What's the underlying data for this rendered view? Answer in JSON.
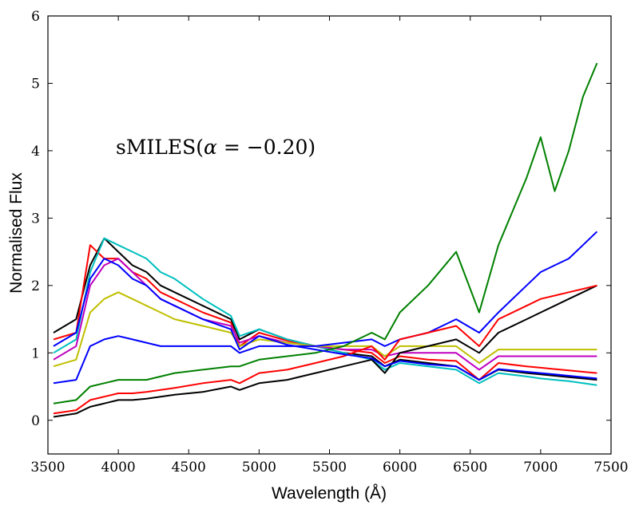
{
  "chart_data": {
    "type": "line",
    "xlabel": "Wavelength (Å)",
    "ylabel": "Normalised Flux",
    "xlim": [
      3500,
      7500
    ],
    "ylim": [
      -0.5,
      6
    ],
    "xticks": [
      "3500",
      "4000",
      "4500",
      "5000",
      "5500",
      "6000",
      "6500",
      "7000",
      "7500"
    ],
    "yticks": [
      "0",
      "1",
      "2",
      "3",
      "4",
      "5",
      "6"
    ],
    "annotation": {
      "prefix": "sMILES(",
      "symbol": "α",
      "rest": " = −0.20)"
    },
    "grid": false,
    "legend": "none",
    "colors": [
      "#000000",
      "#ff0000",
      "#0000ff",
      "#008000",
      "#00bfbf",
      "#bf00bf",
      "#bfbf00"
    ],
    "wavelength_samples": [
      3540,
      3700,
      3800,
      3900,
      4000,
      4100,
      4200,
      4300,
      4400,
      4600,
      4800,
      4861,
      5000,
      5200,
      5400,
      5600,
      5800,
      5893,
      6000,
      6200,
      6400,
      6563,
      6700,
      6900,
      7000,
      7100,
      7200,
      7300,
      7400
    ],
    "series": [
      {
        "color": "#000000",
        "values": [
          1.3,
          1.5,
          2.3,
          2.7,
          2.5,
          2.3,
          2.2,
          2.0,
          1.9,
          1.7,
          1.5,
          1.2,
          1.35,
          1.2,
          1.1,
          1.0,
          0.95,
          0.8,
          0.9,
          0.85,
          0.8,
          0.6,
          0.75,
          0.7,
          0.68,
          0.66,
          0.64,
          0.62,
          0.6
        ]
      },
      {
        "color": "#ff0000",
        "values": [
          1.2,
          1.3,
          2.6,
          2.4,
          2.4,
          2.2,
          2.1,
          1.9,
          1.8,
          1.6,
          1.45,
          1.1,
          1.3,
          1.18,
          1.1,
          1.05,
          1.0,
          0.85,
          0.95,
          0.9,
          0.88,
          0.6,
          0.85,
          0.8,
          0.78,
          0.76,
          0.74,
          0.72,
          0.7
        ]
      },
      {
        "color": "#00bfbf",
        "values": [
          1.0,
          1.2,
          2.2,
          2.7,
          2.6,
          2.5,
          2.4,
          2.2,
          2.1,
          1.8,
          1.55,
          1.25,
          1.35,
          1.2,
          1.1,
          1.0,
          0.9,
          0.75,
          0.85,
          0.8,
          0.75,
          0.55,
          0.7,
          0.65,
          0.62,
          0.6,
          0.58,
          0.55,
          0.52
        ]
      },
      {
        "color": "#bf00bf",
        "values": [
          0.9,
          1.1,
          2.0,
          2.3,
          2.4,
          2.2,
          2.0,
          1.8,
          1.7,
          1.5,
          1.4,
          1.15,
          1.25,
          1.15,
          1.1,
          1.05,
          1.05,
          0.95,
          1.0,
          1.0,
          1.0,
          0.75,
          0.95,
          0.95,
          0.95,
          0.95,
          0.95,
          0.95,
          0.95
        ]
      },
      {
        "color": "#bfbf00",
        "values": [
          0.8,
          0.9,
          1.6,
          1.8,
          1.9,
          1.8,
          1.7,
          1.6,
          1.5,
          1.4,
          1.3,
          1.1,
          1.2,
          1.15,
          1.1,
          1.1,
          1.1,
          0.95,
          1.1,
          1.1,
          1.1,
          0.85,
          1.05,
          1.05,
          1.05,
          1.05,
          1.05,
          1.05,
          1.05
        ]
      },
      {
        "color": "#0000ff",
        "values": [
          0.55,
          0.6,
          1.1,
          1.2,
          1.25,
          1.2,
          1.15,
          1.1,
          1.1,
          1.1,
          1.1,
          1.0,
          1.1,
          1.1,
          1.1,
          1.15,
          1.2,
          1.1,
          1.2,
          1.3,
          1.5,
          1.3,
          1.6,
          2.0,
          2.2,
          2.3,
          2.4,
          2.6,
          2.8
        ]
      },
      {
        "color": "#008000",
        "values": [
          0.25,
          0.3,
          0.5,
          0.55,
          0.6,
          0.6,
          0.6,
          0.65,
          0.7,
          0.75,
          0.8,
          0.8,
          0.9,
          0.95,
          1.0,
          1.1,
          1.3,
          1.2,
          1.6,
          2.0,
          2.5,
          1.6,
          2.6,
          3.6,
          4.2,
          3.4,
          4.0,
          4.8,
          5.3
        ]
      },
      {
        "color": "#000000",
        "values": [
          0.05,
          0.1,
          0.2,
          0.25,
          0.3,
          0.3,
          0.32,
          0.35,
          0.38,
          0.42,
          0.5,
          0.45,
          0.55,
          0.6,
          0.7,
          0.8,
          0.9,
          0.7,
          1.0,
          1.1,
          1.2,
          1.0,
          1.3,
          1.5,
          1.6,
          1.7,
          1.8,
          1.9,
          2.0
        ]
      },
      {
        "color": "#ff0000",
        "values": [
          0.1,
          0.15,
          0.3,
          0.35,
          0.4,
          0.4,
          0.42,
          0.45,
          0.48,
          0.55,
          0.6,
          0.55,
          0.7,
          0.75,
          0.85,
          0.95,
          1.1,
          0.9,
          1.2,
          1.3,
          1.4,
          1.1,
          1.5,
          1.7,
          1.8,
          1.85,
          1.9,
          1.95,
          2.0
        ]
      },
      {
        "color": "#0000ff",
        "values": [
          1.1,
          1.3,
          2.1,
          2.4,
          2.3,
          2.1,
          2.0,
          1.8,
          1.7,
          1.5,
          1.35,
          1.05,
          1.25,
          1.12,
          1.05,
          0.98,
          0.92,
          0.8,
          0.88,
          0.83,
          0.8,
          0.6,
          0.76,
          0.72,
          0.7,
          0.68,
          0.66,
          0.64,
          0.62
        ]
      }
    ]
  }
}
